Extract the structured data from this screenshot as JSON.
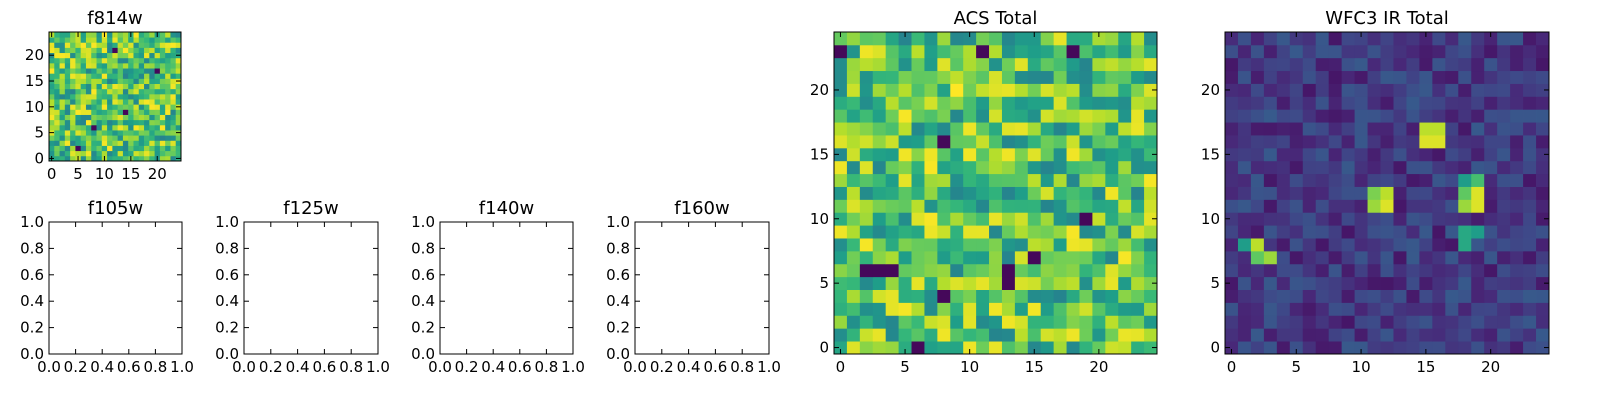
{
  "chart_data": [
    {
      "type": "heatmap",
      "title": "f814w",
      "colormap": "viridis",
      "grid_size": 25,
      "xlim": [
        -0.5,
        24.5
      ],
      "ylim": [
        -0.5,
        24.5
      ],
      "xticks": [
        0,
        5,
        10,
        15,
        20
      ],
      "yticks": [
        0,
        5,
        10,
        15,
        20
      ],
      "xtick_labels": [
        "0",
        "5",
        "10",
        "15",
        "20"
      ],
      "ytick_labels": [
        "0",
        "5",
        "10",
        "15",
        "20"
      ],
      "pattern": "noise",
      "seed": 11,
      "low_cells": [
        [
          12,
          21
        ],
        [
          14,
          9
        ],
        [
          5,
          2
        ],
        [
          8,
          6
        ],
        [
          20,
          17
        ]
      ]
    },
    {
      "type": "empty",
      "title": "f105w",
      "xlim": [
        0,
        1
      ],
      "ylim": [
        0,
        1
      ],
      "xtick_labels": [
        "0.0",
        "0.2",
        "0.4",
        "0.6",
        "0.8",
        "1.0"
      ],
      "ytick_labels": [
        "0.0",
        "0.2",
        "0.4",
        "0.6",
        "0.8",
        "1.0"
      ]
    },
    {
      "type": "empty",
      "title": "f125w",
      "xlim": [
        0,
        1
      ],
      "ylim": [
        0,
        1
      ],
      "xtick_labels": [
        "0.0",
        "0.2",
        "0.4",
        "0.6",
        "0.8",
        "1.0"
      ],
      "ytick_labels": [
        "0.0",
        "0.2",
        "0.4",
        "0.6",
        "0.8",
        "1.0"
      ]
    },
    {
      "type": "empty",
      "title": "f140w",
      "xlim": [
        0,
        1
      ],
      "ylim": [
        0,
        1
      ],
      "xtick_labels": [
        "0.0",
        "0.2",
        "0.4",
        "0.6",
        "0.8",
        "1.0"
      ],
      "ytick_labels": [
        "0.0",
        "0.2",
        "0.4",
        "0.6",
        "0.8",
        "1.0"
      ]
    },
    {
      "type": "empty",
      "title": "f160w",
      "xlim": [
        0,
        1
      ],
      "ylim": [
        0,
        1
      ],
      "xtick_labels": [
        "0.0",
        "0.2",
        "0.4",
        "0.6",
        "0.8",
        "1.0"
      ],
      "ytick_labels": [
        "0.0",
        "0.2",
        "0.4",
        "0.6",
        "0.8",
        "1.0"
      ]
    },
    {
      "type": "heatmap",
      "title": "ACS Total",
      "colormap": "viridis",
      "grid_size": 25,
      "xlim": [
        -0.5,
        24.5
      ],
      "ylim": [
        -0.5,
        24.5
      ],
      "xticks": [
        0,
        5,
        10,
        15,
        20
      ],
      "yticks": [
        0,
        5,
        10,
        15,
        20
      ],
      "xtick_labels": [
        "0",
        "5",
        "10",
        "15",
        "20"
      ],
      "ytick_labels": [
        "0",
        "5",
        "10",
        "15",
        "20"
      ],
      "pattern": "noise",
      "seed": 29,
      "low_cells": [
        [
          0,
          23
        ],
        [
          18,
          23
        ],
        [
          8,
          16
        ],
        [
          13,
          6
        ],
        [
          13,
          5
        ],
        [
          2,
          6
        ],
        [
          3,
          6
        ],
        [
          4,
          6
        ],
        [
          8,
          4
        ],
        [
          6,
          0
        ],
        [
          11,
          23
        ],
        [
          19,
          10
        ],
        [
          15,
          7
        ]
      ]
    },
    {
      "type": "heatmap",
      "title": "WFC3 IR Total",
      "colormap": "viridis",
      "grid_size": 25,
      "xlim": [
        -0.5,
        24.5
      ],
      "ylim": [
        -0.5,
        24.5
      ],
      "xticks": [
        0,
        5,
        10,
        15,
        20
      ],
      "yticks": [
        0,
        5,
        10,
        15,
        20
      ],
      "xtick_labels": [
        "0",
        "5",
        "10",
        "15",
        "20"
      ],
      "ytick_labels": [
        "0",
        "5",
        "10",
        "15",
        "20"
      ],
      "pattern": "background_with_sources",
      "seed": 7,
      "sources": [
        {
          "x": 15,
          "y": 16,
          "value": 0.95
        },
        {
          "x": 16,
          "y": 16,
          "value": 0.95
        },
        {
          "x": 15,
          "y": 17,
          "value": 0.9
        },
        {
          "x": 16,
          "y": 17,
          "value": 0.9
        },
        {
          "x": 11,
          "y": 11,
          "value": 0.85
        },
        {
          "x": 12,
          "y": 11,
          "value": 0.95
        },
        {
          "x": 11,
          "y": 12,
          "value": 0.8
        },
        {
          "x": 12,
          "y": 12,
          "value": 0.9
        },
        {
          "x": 18,
          "y": 11,
          "value": 0.85
        },
        {
          "x": 19,
          "y": 11,
          "value": 0.95
        },
        {
          "x": 18,
          "y": 12,
          "value": 0.75
        },
        {
          "x": 19,
          "y": 12,
          "value": 0.95
        },
        {
          "x": 18,
          "y": 13,
          "value": 0.55
        },
        {
          "x": 19,
          "y": 13,
          "value": 0.7
        },
        {
          "x": 18,
          "y": 9,
          "value": 0.6
        },
        {
          "x": 19,
          "y": 9,
          "value": 0.55
        },
        {
          "x": 18,
          "y": 8,
          "value": 0.6
        },
        {
          "x": 2,
          "y": 8,
          "value": 0.9
        },
        {
          "x": 2,
          "y": 7,
          "value": 0.75
        },
        {
          "x": 3,
          "y": 7,
          "value": 0.85
        },
        {
          "x": 1,
          "y": 8,
          "value": 0.55
        }
      ]
    }
  ]
}
